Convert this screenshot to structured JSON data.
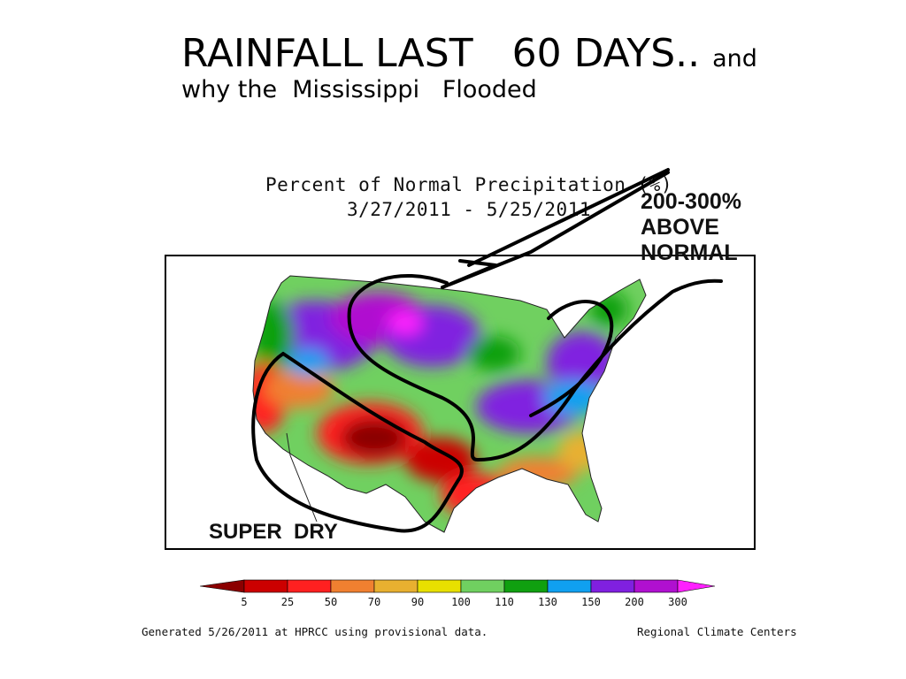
{
  "title": {
    "line1_part1": "RAINFALL LAST",
    "line1_part2": "60 DAYS..",
    "line1_part3": "and",
    "line2": "why the  Mississippi   Flooded"
  },
  "map": {
    "header_line1": "Percent of Normal Precipitation (%)",
    "header_line2": "3/27/2011 - 5/25/2011"
  },
  "annotations": {
    "above_line1": "200-300%",
    "above_line2": "ABOVE",
    "above_line3": "NORMAL",
    "dry": "SUPER  DRY"
  },
  "legend": {
    "labels": [
      "5",
      "25",
      "50",
      "70",
      "90",
      "100",
      "110",
      "130",
      "150",
      "200",
      "300"
    ],
    "colors": [
      "#8b0000",
      "#cc0000",
      "#ff2020",
      "#f08030",
      "#e8b030",
      "#e8e000",
      "#70d060",
      "#10a010",
      "#10a0f0",
      "#8020e0",
      "#b010d0",
      "#ff20ff"
    ]
  },
  "footer": {
    "left": "Generated 5/26/2011 at HPRCC using provisional data.",
    "right": "Regional Climate Centers"
  }
}
